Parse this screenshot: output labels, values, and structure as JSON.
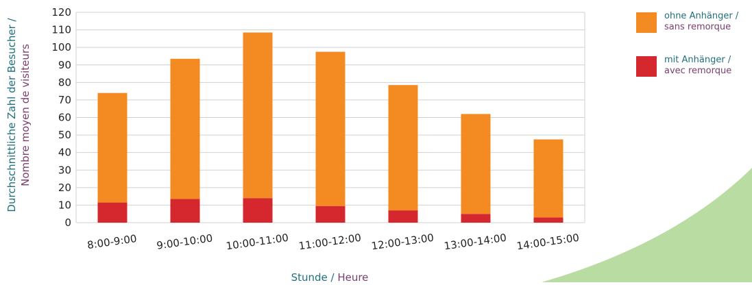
{
  "chart_data": {
    "type": "bar",
    "stacked": true,
    "categories": [
      "8:00-9:00",
      "9:00-10:00",
      "10:00-11:00",
      "11:00-12:00",
      "12:00-13:00",
      "13:00-14:00",
      "14:00-15:00"
    ],
    "series": [
      {
        "name": "mit Anhänger / avec remorque",
        "name_de": "mit Anhänger",
        "name_fr": "avec remorque",
        "color": "#d4282e",
        "values": [
          11.5,
          13.5,
          14,
          9.5,
          7,
          5,
          3
        ]
      },
      {
        "name": "ohne Anhänger / sans remorque",
        "name_de": "ohne Anhänger",
        "name_fr": "sans remorque",
        "color": "#f48b22",
        "values": [
          62.5,
          80,
          94.5,
          88,
          71.5,
          57,
          44.5
        ]
      }
    ],
    "totals": [
      74,
      93.5,
      108.5,
      97.5,
      78.5,
      62,
      47.5
    ],
    "ylim": [
      0,
      120
    ],
    "yticks": [
      0,
      10,
      20,
      30,
      40,
      50,
      60,
      70,
      80,
      90,
      100,
      110,
      120
    ],
    "ylabel_de": "Durchschnittliche Zahl der Besucher /",
    "ylabel_fr": "Nombre moyen de visiteurs",
    "xlabel_de": "Stunde",
    "xlabel_sep": " / ",
    "xlabel_fr": "Heure",
    "grid": true,
    "legend_position": "top-right"
  },
  "legend_sep": " /",
  "colors": {
    "grid": "#d0d0d0",
    "decor_green": "#b9dca3",
    "label_de": "#1f6f7c",
    "label_fr": "#7a3e6e"
  }
}
